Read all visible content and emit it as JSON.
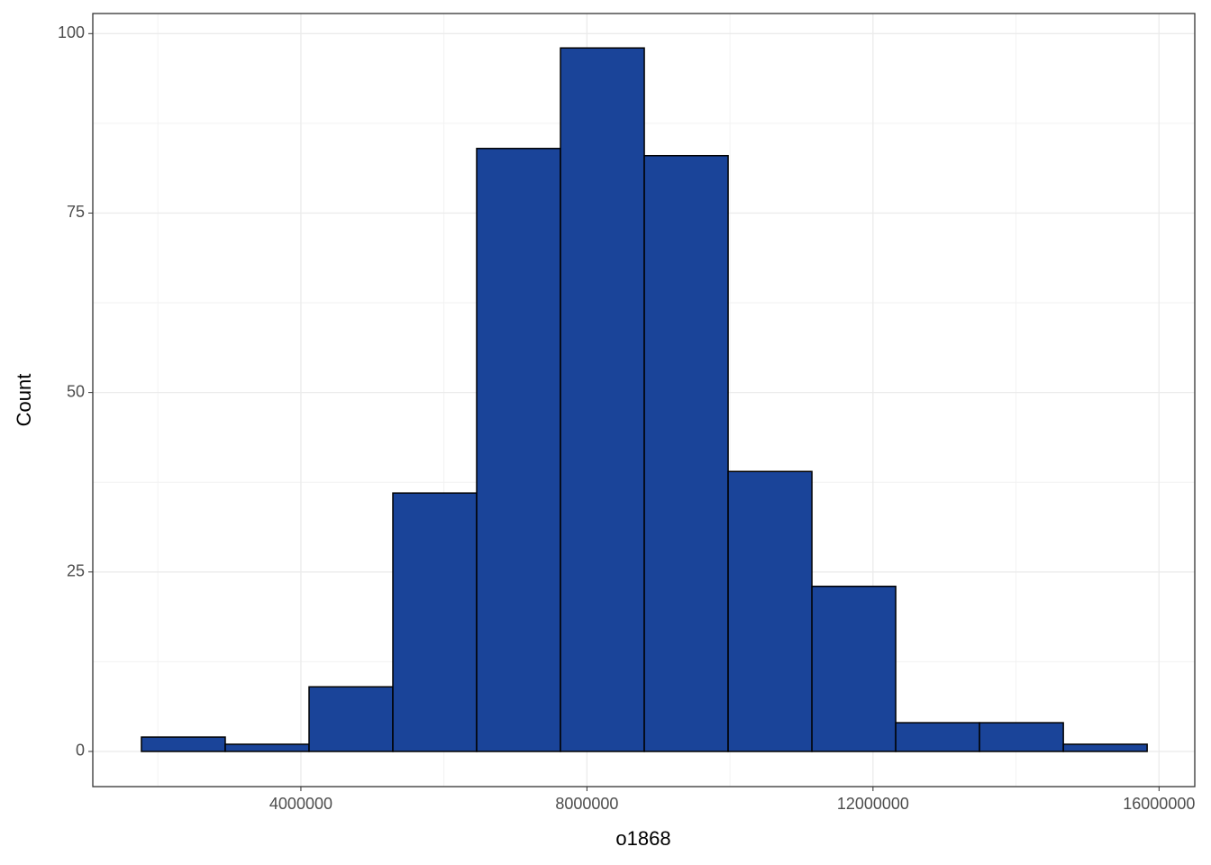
{
  "chart_data": {
    "type": "histogram",
    "x_label": "o1868",
    "y_label": "Count",
    "bins": [
      1770000,
      2942000,
      4114000,
      5286000,
      6458000,
      7630000,
      8802000,
      9974000,
      11146000,
      12318000,
      13490000,
      14662000,
      15834000
    ],
    "values": [
      2,
      1,
      9,
      36,
      84,
      98,
      83,
      39,
      23,
      4,
      4,
      1
    ],
    "color": "#1a4499",
    "edge_color": "#000000",
    "xlim": [
      1090000,
      16500000
    ],
    "ylim": [
      -4.9,
      102.8
    ],
    "xticks": [
      4000000,
      8000000,
      12000000,
      16000000
    ],
    "yticks": [
      0,
      25,
      50,
      75,
      100
    ],
    "grid": true
  }
}
